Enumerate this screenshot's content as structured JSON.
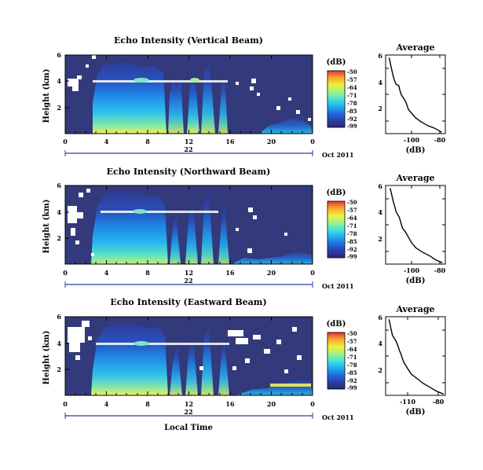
{
  "chart_data": [
    {
      "type": "heatmap",
      "title": "Echo Intensity (Vertical Beam)",
      "ylabel": "Height (km)",
      "yticks": [
        "2",
        "4",
        "6"
      ],
      "xticks": [
        "0",
        "4",
        "8",
        "12",
        "16",
        "20",
        "0"
      ],
      "date_label": "22",
      "date_suffix": "Oct 2011",
      "colorbar": {
        "unit": "(dB)",
        "ticks": [
          "-50",
          "-57",
          "-64",
          "-71",
          "-78",
          "-85",
          "-92",
          "-99"
        ]
      },
      "profile": {
        "title": "Average",
        "xlabel": "(dB)",
        "xticks": [
          "-100",
          "-80"
        ],
        "yticks": [
          "2",
          "4",
          "6"
        ],
        "xlim": [
          -112,
          -78
        ],
        "ylim": [
          0.3,
          6.2
        ],
        "x": [
          -80,
          -84,
          -88,
          -92,
          -95,
          -97,
          -99,
          -100,
          -101,
          -103,
          -104,
          -104.5,
          -106,
          -107,
          -108,
          -109,
          -110
        ],
        "y": [
          0.4,
          0.7,
          0.9,
          1.2,
          1.5,
          1.8,
          2.1,
          2.5,
          2.8,
          3.2,
          3.6,
          3.9,
          4.0,
          4.3,
          4.8,
          5.4,
          6.0
        ]
      }
    },
    {
      "type": "heatmap",
      "title": "Echo Intensity (Northward Beam)",
      "ylabel": "Height (km)",
      "yticks": [
        "2",
        "4",
        "6"
      ],
      "xticks": [
        "0",
        "4",
        "8",
        "12",
        "16",
        "20",
        "0"
      ],
      "date_label": "22",
      "date_suffix": "Oct 2011",
      "colorbar": {
        "unit": "(dB)",
        "ticks": [
          "-50",
          "-57",
          "-64",
          "-71",
          "-78",
          "-85",
          "-92",
          "-99"
        ]
      },
      "profile": {
        "title": "Average",
        "xlabel": "(dB)",
        "xticks": [
          "-100",
          "-80"
        ],
        "yticks": [
          "2",
          "4",
          "6"
        ],
        "xlim": [
          -117,
          -78
        ],
        "ylim": [
          0.3,
          6.2
        ],
        "x": [
          -80,
          -84,
          -88,
          -93,
          -97,
          -100,
          -102,
          -104,
          -106,
          -107,
          -108,
          -109,
          -110,
          -111,
          -112,
          -113,
          -114
        ],
        "y": [
          0.4,
          0.6,
          0.9,
          1.2,
          1.5,
          1.9,
          2.3,
          2.7,
          3.0,
          3.4,
          3.8,
          4.0,
          4.2,
          4.6,
          5.0,
          5.5,
          6.0
        ]
      }
    },
    {
      "type": "heatmap",
      "title": "Echo Intensity (Eastward Beam)",
      "ylabel": "Height (km)",
      "xlabel": "Local Time",
      "yticks": [
        "2",
        "4",
        "6"
      ],
      "xticks": [
        "0",
        "4",
        "8",
        "12",
        "16",
        "20",
        "0"
      ],
      "date_label": "22",
      "date_suffix": "Oct 2011",
      "colorbar": {
        "unit": "(dB)",
        "ticks": [
          "-50",
          "-57",
          "-64",
          "-71",
          "-78",
          "-85",
          "-92",
          "-99"
        ]
      },
      "profile": {
        "title": "Average",
        "xlabel": "(dB)",
        "xticks": [
          "-110",
          "-80"
        ],
        "yticks": [
          "2",
          "4",
          "6"
        ],
        "xlim": [
          -114,
          -79
        ],
        "ylim": [
          0.3,
          6.2
        ],
        "x": [
          -80,
          -84,
          -88,
          -92,
          -96,
          -99,
          -101,
          -103,
          -104,
          -105,
          -106,
          -107,
          -108,
          -110,
          -111,
          -112
        ],
        "y": [
          0.4,
          0.6,
          0.9,
          1.2,
          1.6,
          1.9,
          2.3,
          2.7,
          3.0,
          3.4,
          3.7,
          4.1,
          4.4,
          4.8,
          5.4,
          6.0
        ]
      }
    }
  ]
}
